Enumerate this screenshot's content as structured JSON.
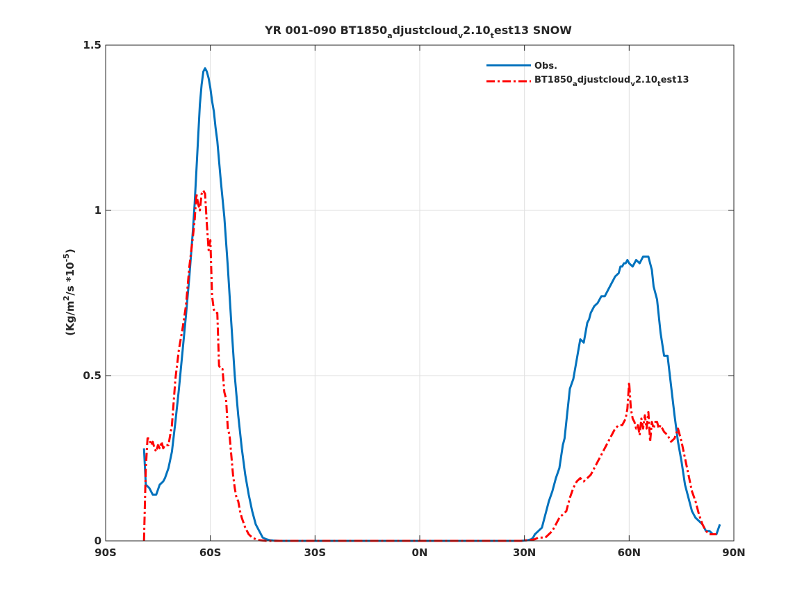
{
  "chart_data": {
    "type": "line",
    "title": {
      "pre": "YR 001-090 BT1850",
      "sub1": "a",
      "mid1": "djustcloud",
      "sub2": "v",
      "mid2": "2.10",
      "sub3": "t",
      "post": "est13 SNOW"
    },
    "ylabel": {
      "pre": "(Kg/m",
      "sup1": "2",
      "mid": "/s *10",
      "sup2": "-5",
      "post": ")"
    },
    "xlabel": "",
    "xlim": [
      -90,
      90
    ],
    "ylim": [
      0,
      1.5
    ],
    "xticks": [
      -90,
      -60,
      -30,
      0,
      30,
      60,
      90
    ],
    "xtick_labels": [
      "90S",
      "60S",
      "30S",
      "0N",
      "30N",
      "60N",
      "90N"
    ],
    "yticks": [
      0,
      0.5,
      1,
      1.5
    ],
    "ytick_labels": [
      "0",
      "0.5",
      "1",
      "1.5"
    ],
    "grid": true,
    "legend_position": "top-right",
    "series": [
      {
        "name": "Obs.",
        "color": "#0072bd",
        "style": "solid",
        "x": [
          -79,
          -78.5,
          -77.5,
          -76.5,
          -76,
          -75.5,
          -74.5,
          -73.5,
          -73,
          -72,
          -71,
          -70,
          -69,
          -68,
          -67,
          -66,
          -65,
          -64.5,
          -64,
          -63.5,
          -63,
          -62.5,
          -62,
          -61.5,
          -61,
          -60.5,
          -60,
          -59.5,
          -59,
          -58.5,
          -58,
          -57,
          -56,
          -55,
          -54,
          -53,
          -52,
          -51,
          -50,
          -49,
          -48,
          -47,
          -46,
          -45,
          -44,
          -43,
          -42,
          -40,
          -38,
          -30,
          -20,
          -10,
          0,
          10,
          20,
          29,
          30,
          31,
          32,
          32.5,
          33,
          34,
          35,
          35.5,
          36,
          37,
          38,
          39,
          40,
          41,
          41.5,
          42,
          43,
          44,
          45,
          46,
          47,
          48,
          48.5,
          49,
          49.5,
          50,
          51,
          52,
          53,
          54,
          55,
          56,
          57,
          57.5,
          58,
          58.5,
          59,
          59.5,
          60,
          61,
          62,
          63,
          64,
          64.5,
          65,
          65.5,
          66,
          66.5,
          67,
          68,
          69,
          70,
          71,
          72,
          73,
          74,
          75,
          76,
          77,
          78,
          79,
          80,
          81,
          82,
          83,
          84,
          85,
          86
        ],
        "y": [
          0.28,
          0.17,
          0.16,
          0.14,
          0.14,
          0.14,
          0.17,
          0.18,
          0.19,
          0.22,
          0.27,
          0.36,
          0.46,
          0.57,
          0.68,
          0.8,
          0.94,
          1.02,
          1.12,
          1.22,
          1.32,
          1.38,
          1.42,
          1.43,
          1.42,
          1.4,
          1.37,
          1.33,
          1.3,
          1.25,
          1.21,
          1.09,
          0.98,
          0.83,
          0.66,
          0.5,
          0.38,
          0.28,
          0.2,
          0.14,
          0.09,
          0.05,
          0.03,
          0.01,
          0.005,
          0.002,
          0.001,
          0,
          0,
          0,
          0,
          0,
          0,
          0,
          0,
          0,
          0.001,
          0.002,
          0.005,
          0.01,
          0.02,
          0.03,
          0.04,
          0.06,
          0.08,
          0.12,
          0.15,
          0.19,
          0.22,
          0.29,
          0.31,
          0.36,
          0.46,
          0.49,
          0.55,
          0.61,
          0.6,
          0.66,
          0.67,
          0.69,
          0.7,
          0.71,
          0.72,
          0.74,
          0.74,
          0.76,
          0.78,
          0.8,
          0.81,
          0.83,
          0.83,
          0.84,
          0.84,
          0.85,
          0.84,
          0.83,
          0.85,
          0.84,
          0.86,
          0.86,
          0.86,
          0.86,
          0.84,
          0.82,
          0.77,
          0.73,
          0.63,
          0.56,
          0.56,
          0.47,
          0.38,
          0.3,
          0.24,
          0.17,
          0.13,
          0.09,
          0.07,
          0.06,
          0.05,
          0.03,
          0.03,
          0.02,
          0.02,
          0.05
        ]
      },
      {
        "name": "BT1850adjustcloudv2.10test13",
        "name_parts": {
          "pre": "BT1850",
          "sub1": "a",
          "mid1": "djustcloud",
          "sub2": "v",
          "mid2": "2.10",
          "sub3": "t",
          "post": "est13"
        },
        "color": "#ff0000",
        "style": "dashdot",
        "x": [
          -79,
          -78.5,
          -78,
          -77.5,
          -77,
          -76.5,
          -76,
          -75.5,
          -75,
          -74.5,
          -74,
          -73.5,
          -73,
          -72,
          -71,
          -70,
          -69,
          -68,
          -67,
          -66,
          -65,
          -64.5,
          -64,
          -63.5,
          -63,
          -62.5,
          -62,
          -61.5,
          -61,
          -60.5,
          -60,
          -59.5,
          -59,
          -58.5,
          -58,
          -57.5,
          -57,
          -56.5,
          -56,
          -55.5,
          -55,
          -54.5,
          -54,
          -53.5,
          -53,
          -52.5,
          -52,
          -51.5,
          -51,
          -50,
          -49,
          -48,
          -47,
          -46,
          -45,
          -44,
          -43,
          -42,
          -40,
          -30,
          -20,
          -10,
          0,
          10,
          20,
          29,
          30,
          31,
          32,
          33,
          34,
          34.5,
          35,
          36,
          37,
          38,
          39,
          40,
          41,
          42,
          43,
          44,
          45,
          46,
          47,
          48,
          49,
          50,
          51,
          52,
          53,
          54,
          55,
          56,
          57,
          58,
          59,
          59.5,
          60,
          60.5,
          61,
          61.5,
          62,
          62.5,
          63,
          63.5,
          64,
          64.5,
          65,
          65.5,
          66,
          66.5,
          67,
          67.5,
          68,
          68.5,
          69,
          70,
          71,
          72,
          73,
          74,
          75,
          76,
          77,
          78,
          79,
          80,
          81,
          82,
          83,
          84,
          85
        ],
        "y": [
          0,
          0.22,
          0.31,
          0.31,
          0.29,
          0.3,
          0.28,
          0.27,
          0.29,
          0.28,
          0.3,
          0.28,
          0.29,
          0.29,
          0.35,
          0.49,
          0.58,
          0.64,
          0.71,
          0.83,
          0.92,
          0.97,
          1.05,
          1.02,
          1.0,
          1.05,
          1.06,
          1.05,
          0.96,
          0.88,
          0.91,
          0.74,
          0.7,
          0.69,
          0.69,
          0.53,
          0.52,
          0.52,
          0.45,
          0.43,
          0.34,
          0.32,
          0.26,
          0.2,
          0.16,
          0.13,
          0.12,
          0.09,
          0.07,
          0.04,
          0.02,
          0.01,
          0.005,
          0.002,
          0.001,
          0,
          0,
          0,
          0,
          0,
          0,
          0,
          0,
          0,
          0,
          0,
          0.001,
          0.002,
          0.003,
          0.005,
          0.01,
          0.01,
          0.01,
          0.01,
          0.02,
          0.03,
          0.05,
          0.07,
          0.08,
          0.09,
          0.13,
          0.16,
          0.18,
          0.19,
          0.18,
          0.19,
          0.2,
          0.22,
          0.24,
          0.26,
          0.28,
          0.3,
          0.32,
          0.34,
          0.35,
          0.35,
          0.37,
          0.4,
          0.48,
          0.4,
          0.37,
          0.36,
          0.34,
          0.35,
          0.32,
          0.37,
          0.34,
          0.38,
          0.34,
          0.39,
          0.3,
          0.36,
          0.34,
          0.36,
          0.36,
          0.34,
          0.35,
          0.33,
          0.32,
          0.3,
          0.31,
          0.34,
          0.3,
          0.25,
          0.2,
          0.15,
          0.12,
          0.08,
          0.05,
          0.03,
          0.02,
          0.02,
          0.02
        ]
      }
    ]
  }
}
